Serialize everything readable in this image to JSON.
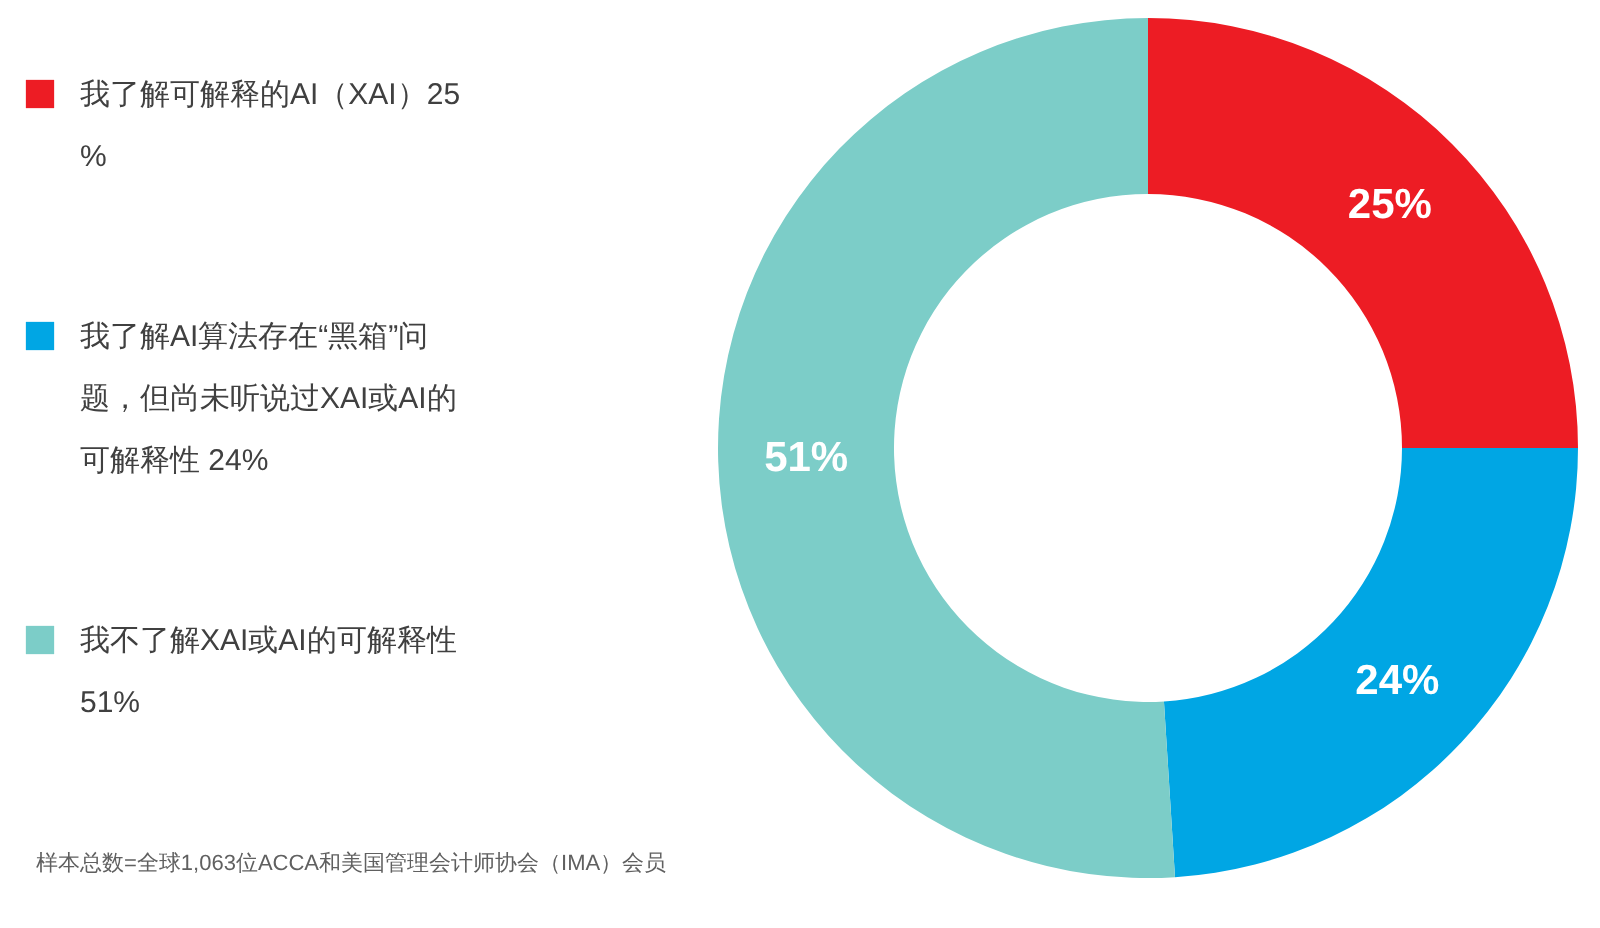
{
  "chart_data": {
    "type": "donut",
    "categories": [
      "我了解可解释的AI（XAI）25%",
      "我了解AI算法存在“黑箱”问题，但尚未听说过XAI或AI的可解释性 24%",
      "我不了解XAI或AI的可解释性 51%"
    ],
    "values": [
      25,
      24,
      51
    ],
    "colors": [
      "#ed1c24",
      "#00a6e4",
      "#7ccdc8"
    ],
    "value_labels": [
      "25%",
      "24%",
      "51%"
    ],
    "legend": "left",
    "annotations": [
      "样本总数=全球1,063位ACCA和美国管理会计师协会（IMA）会员"
    ]
  }
}
